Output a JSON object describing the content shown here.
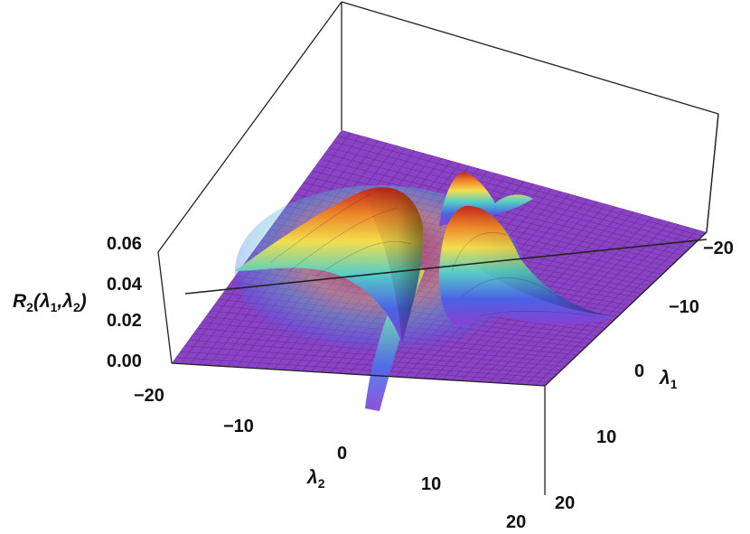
{
  "chart_data": {
    "type": "surface3d",
    "colormap": "rainbow (purple-blue-cyan-yellow-orange-red)",
    "axes": {
      "z": {
        "label_main": "R",
        "label_sub": "2",
        "label_args_open": "(λ",
        "label_args_sub1": "1",
        "label_args_mid": ",λ",
        "label_args_sub2": "2",
        "label_args_close": ")",
        "range": [
          0.0,
          0.06
        ],
        "ticks": [
          "0.06",
          "0.04",
          "0.02",
          "0.00"
        ]
      },
      "x": {
        "name": "λ2",
        "label_main": "λ",
        "label_sub": "2",
        "range": [
          -20,
          20
        ],
        "ticks": [
          "−20",
          "−10",
          "0",
          "10",
          "20"
        ]
      },
      "y": {
        "name": "λ1",
        "label_main": "λ",
        "label_sub": "1",
        "range": [
          -20,
          20
        ],
        "ticks": [
          "−20",
          "−10",
          "0",
          "10",
          "20"
        ]
      }
    },
    "features": [
      {
        "kind": "peak",
        "lambda1": -2,
        "lambda2": -6,
        "height": 0.058
      },
      {
        "kind": "peak",
        "lambda1": -9,
        "lambda2": 3,
        "height": 0.057
      },
      {
        "kind": "peak",
        "lambda1": -4,
        "lambda2": 5,
        "height": 0.054
      },
      {
        "kind": "ridge",
        "along": "lambda2 = 0 line",
        "height": 0.035
      }
    ],
    "box": true,
    "mesh": true
  }
}
